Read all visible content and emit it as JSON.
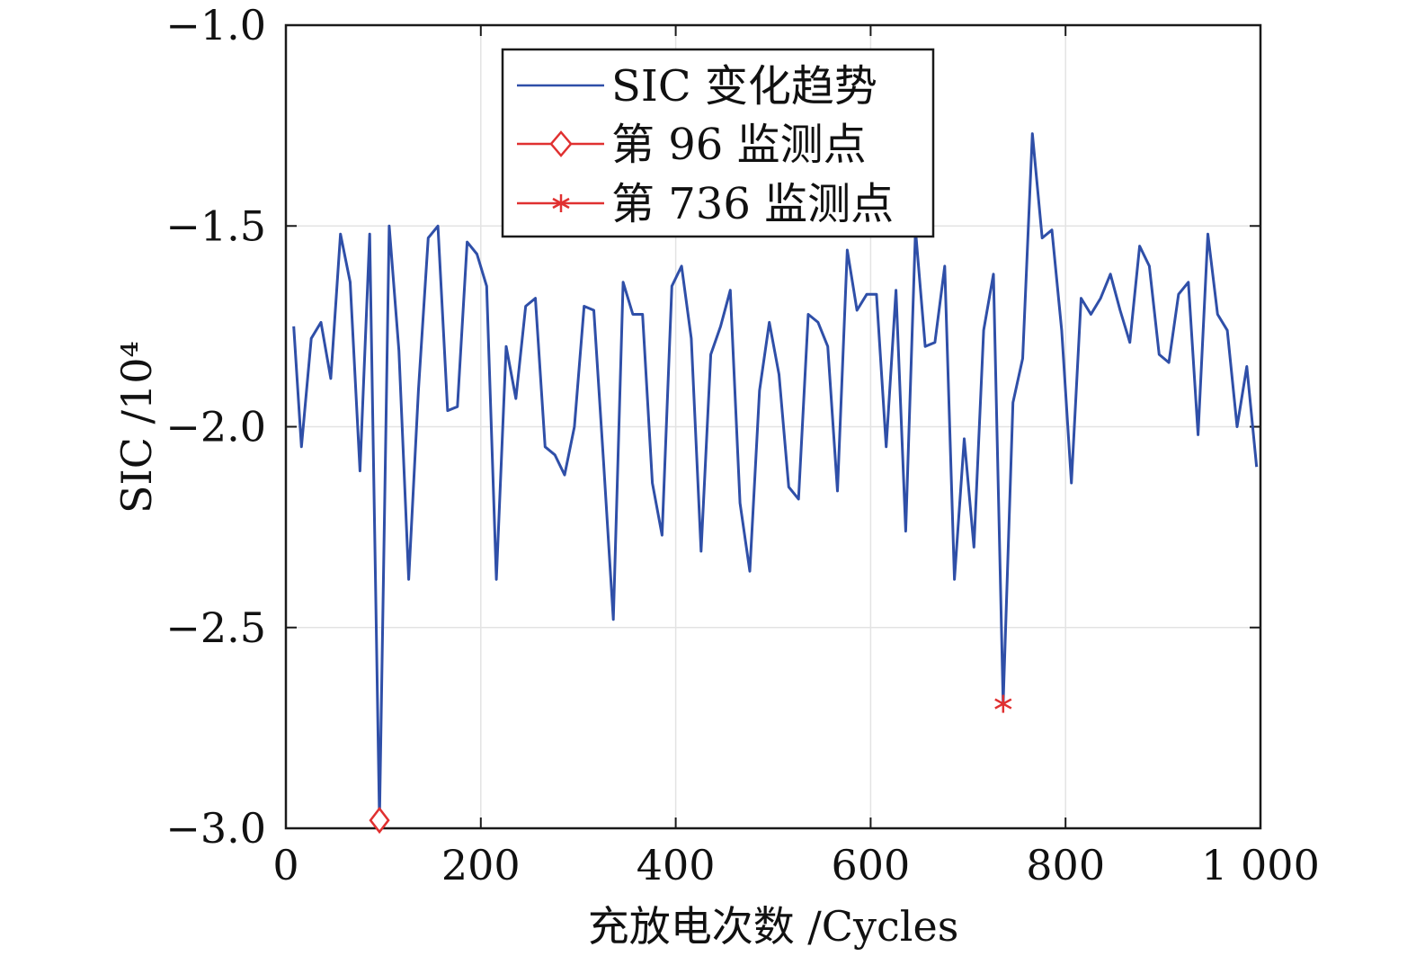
{
  "chart_data": {
    "type": "line",
    "xlabel": "充放电次数 /Cycles",
    "ylabel": "SIC /10⁴",
    "xlim": [
      0,
      1000
    ],
    "ylim": [
      -3.0,
      -1.0
    ],
    "xticks": [
      0,
      200,
      400,
      600,
      800,
      1000
    ],
    "xtick_labels": [
      "0",
      "200",
      "400",
      "600",
      "800",
      "1 000"
    ],
    "yticks": [
      -1.0,
      -1.5,
      -2.0,
      -2.5,
      -3.0
    ],
    "ytick_labels": [
      "−1.0",
      "−1.5",
      "−2.0",
      "−2.5",
      "−3.0"
    ],
    "grid": true,
    "legend_position": "top-center",
    "series": [
      {
        "name": "SIC 变化趋势",
        "color": "#2f4fa8",
        "x": [
          8,
          16,
          26,
          36,
          46,
          56,
          66,
          76,
          86,
          96,
          106,
          116,
          126,
          136,
          146,
          156,
          166,
          176,
          186,
          196,
          206,
          216,
          226,
          236,
          246,
          256,
          266,
          276,
          286,
          296,
          306,
          316,
          326,
          336,
          346,
          356,
          366,
          376,
          386,
          396,
          406,
          416,
          426,
          436,
          446,
          456,
          466,
          476,
          486,
          496,
          506,
          516,
          526,
          536,
          546,
          556,
          566,
          576,
          586,
          596,
          606,
          616,
          626,
          636,
          646,
          656,
          666,
          676,
          686,
          696,
          706,
          716,
          726,
          736,
          746,
          756,
          766,
          776,
          786,
          796,
          806,
          816,
          826,
          836,
          846,
          856,
          866,
          876,
          886,
          896,
          906,
          916,
          926,
          936,
          946,
          956,
          966,
          976,
          986,
          996
        ],
        "y": [
          -1.75,
          -2.05,
          -1.78,
          -1.74,
          -1.88,
          -1.52,
          -1.64,
          -2.11,
          -1.52,
          -2.98,
          -1.5,
          -1.81,
          -2.38,
          -1.91,
          -1.53,
          -1.5,
          -1.96,
          -1.95,
          -1.54,
          -1.57,
          -1.65,
          -2.38,
          -1.8,
          -1.93,
          -1.7,
          -1.68,
          -2.05,
          -2.07,
          -2.12,
          -2.0,
          -1.7,
          -1.71,
          -2.09,
          -2.48,
          -1.64,
          -1.72,
          -1.72,
          -2.14,
          -2.27,
          -1.65,
          -1.6,
          -1.78,
          -2.31,
          -1.82,
          -1.75,
          -1.66,
          -2.19,
          -2.36,
          -1.91,
          -1.74,
          -1.87,
          -2.15,
          -2.18,
          -1.72,
          -1.74,
          -1.8,
          -2.16,
          -1.56,
          -1.71,
          -1.67,
          -1.67,
          -2.05,
          -1.66,
          -2.26,
          -1.51,
          -1.8,
          -1.79,
          -1.6,
          -2.38,
          -2.03,
          -2.3,
          -1.76,
          -1.62,
          -2.69,
          -1.94,
          -1.83,
          -1.27,
          -1.53,
          -1.51,
          -1.76,
          -2.14,
          -1.68,
          -1.72,
          -1.68,
          -1.62,
          -1.71,
          -1.79,
          -1.55,
          -1.6,
          -1.82,
          -1.84,
          -1.67,
          -1.64,
          -2.02,
          -1.52,
          -1.72,
          -1.76,
          -2.0,
          -1.85,
          -2.1
        ]
      },
      {
        "name": "第 96 监测点",
        "color": "#e03030",
        "marker": "diamond",
        "x": [
          96
        ],
        "y": [
          -2.98
        ]
      },
      {
        "name": "第 736 监测点",
        "color": "#e03030",
        "marker": "asterisk",
        "x": [
          736
        ],
        "y": [
          -2.69
        ]
      }
    ]
  }
}
